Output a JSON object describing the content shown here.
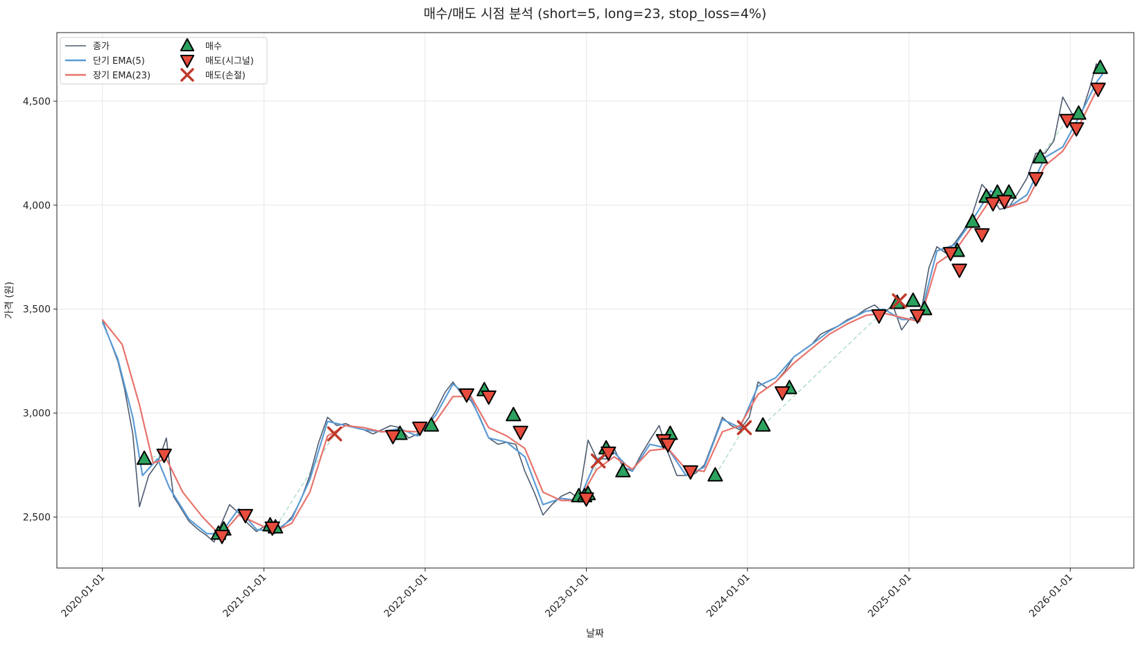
{
  "chart_data": {
    "type": "line",
    "title": "매수/매도 시점 분석 (short=5, long=23, stop_loss=4%)",
    "xlabel": "날짜",
    "ylabel": "가격 (원)",
    "xlim": [
      "2019-09-20",
      "2026-05-25"
    ],
    "ylim": [
      2255,
      4830
    ],
    "x_ticks": [
      "2020-01-01",
      "2021-01-01",
      "2022-01-01",
      "2023-01-01",
      "2024-01-01",
      "2025-01-01",
      "2026-01-01"
    ],
    "y_ticks": [
      2500,
      3000,
      3500,
      4000,
      4500
    ],
    "y_tick_labels": [
      "2,500",
      "3,000",
      "3,500",
      "4,000",
      "4,500"
    ],
    "grid": true,
    "legend_position": "top-left",
    "colors": {
      "close": "#4d5a6e",
      "ema_short": "#5b9bd5",
      "ema_long": "#e8726a",
      "buy": "#2ca25f",
      "sell_signal": "#e74c3c",
      "sell_stoploss": "#c0392b",
      "trade_link": "#a8dcc0"
    },
    "series": [
      {
        "name": "종가",
        "x": [
          "2020-01-01",
          "2020-01-20",
          "2020-02-05",
          "2020-02-20",
          "2020-03-10",
          "2020-03-25",
          "2020-04-15",
          "2020-05-05",
          "2020-05-25",
          "2020-06-10",
          "2020-06-25",
          "2020-07-15",
          "2020-08-05",
          "2020-08-25",
          "2020-09-10",
          "2020-09-25",
          "2020-10-15",
          "2020-11-05",
          "2020-11-25",
          "2020-12-15",
          "2021-01-05",
          "2021-01-25",
          "2021-02-15",
          "2021-03-05",
          "2021-03-25",
          "2021-04-15",
          "2021-05-05",
          "2021-05-25",
          "2021-06-15",
          "2021-07-05",
          "2021-07-25",
          "2021-08-15",
          "2021-09-05",
          "2021-09-25",
          "2021-10-15",
          "2021-11-05",
          "2021-11-25",
          "2021-12-15",
          "2022-01-05",
          "2022-01-25",
          "2022-02-15",
          "2022-03-05",
          "2022-03-25",
          "2022-04-15",
          "2022-05-05",
          "2022-05-25",
          "2022-06-15",
          "2022-07-05",
          "2022-07-25",
          "2022-08-15",
          "2022-09-05",
          "2022-09-25",
          "2022-10-15",
          "2022-11-05",
          "2022-11-25",
          "2022-12-15",
          "2023-01-05",
          "2023-01-25",
          "2023-02-15",
          "2023-03-05",
          "2023-03-25",
          "2023-04-15",
          "2023-05-05",
          "2023-05-25",
          "2023-06-15",
          "2023-07-05",
          "2023-07-25",
          "2023-08-15",
          "2023-09-05",
          "2023-09-25",
          "2023-10-15",
          "2023-11-05",
          "2023-11-25",
          "2023-12-15",
          "2024-01-05",
          "2024-01-25",
          "2024-02-15",
          "2024-03-05",
          "2024-03-25",
          "2024-04-15",
          "2024-05-05",
          "2024-05-25",
          "2024-06-15",
          "2024-07-05",
          "2024-07-25",
          "2024-08-15",
          "2024-09-05",
          "2024-09-25",
          "2024-10-15",
          "2024-11-05",
          "2024-11-25",
          "2024-12-15",
          "2025-01-05",
          "2025-01-25",
          "2025-02-15",
          "2025-03-05",
          "2025-03-25",
          "2025-04-15",
          "2025-05-05",
          "2025-05-25",
          "2025-06-15",
          "2025-07-05",
          "2025-07-25",
          "2025-08-15",
          "2025-09-05",
          "2025-09-25",
          "2025-10-15",
          "2025-11-05",
          "2025-11-25",
          "2025-12-15",
          "2026-01-05",
          "2026-01-25",
          "2026-02-15",
          "2026-03-01",
          "2026-03-15"
        ],
        "values": [
          3450,
          3340,
          3250,
          3120,
          2900,
          2550,
          2700,
          2760,
          2880,
          2600,
          2550,
          2480,
          2440,
          2410,
          2380,
          2460,
          2560,
          2520,
          2470,
          2430,
          2460,
          2420,
          2460,
          2500,
          2580,
          2700,
          2860,
          2980,
          2940,
          2950,
          2930,
          2920,
          2900,
          2920,
          2940,
          2930,
          2880,
          2900,
          2940,
          3010,
          3100,
          3150,
          3090,
          3060,
          2980,
          2880,
          2850,
          2860,
          2850,
          2720,
          2620,
          2510,
          2560,
          2600,
          2620,
          2590,
          2870,
          2780,
          2780,
          2830,
          2740,
          2720,
          2800,
          2870,
          2940,
          2810,
          2700,
          2700,
          2710,
          2750,
          2860,
          2980,
          2940,
          2920,
          2980,
          3150,
          3120,
          3150,
          3200,
          3270,
          3300,
          3330,
          3380,
          3400,
          3420,
          3450,
          3470,
          3500,
          3520,
          3480,
          3520,
          3400,
          3460,
          3450,
          3700,
          3800,
          3770,
          3820,
          3880,
          3960,
          4100,
          4050,
          3980,
          3990,
          4060,
          4130,
          4250,
          4250,
          4310,
          4520,
          4440,
          4430,
          4570,
          4680,
          4640
        ]
      },
      {
        "name": "단기 EMA(5)",
        "x": [
          "2020-01-01",
          "2020-02-05",
          "2020-03-10",
          "2020-04-01",
          "2020-05-05",
          "2020-06-01",
          "2020-07-15",
          "2020-08-25",
          "2020-09-25",
          "2020-11-05",
          "2020-12-15",
          "2021-01-25",
          "2021-03-05",
          "2021-04-15",
          "2021-05-25",
          "2021-07-05",
          "2021-08-15",
          "2021-09-25",
          "2021-11-05",
          "2021-12-15",
          "2022-01-25",
          "2022-03-05",
          "2022-04-15",
          "2022-05-25",
          "2022-07-05",
          "2022-08-15",
          "2022-09-25",
          "2022-11-05",
          "2022-12-15",
          "2023-01-25",
          "2023-03-05",
          "2023-04-15",
          "2023-05-25",
          "2023-07-05",
          "2023-08-15",
          "2023-09-25",
          "2023-11-05",
          "2023-12-15",
          "2024-01-25",
          "2024-03-05",
          "2024-04-15",
          "2024-05-25",
          "2024-07-05",
          "2024-08-15",
          "2024-09-25",
          "2024-11-05",
          "2024-12-15",
          "2025-01-25",
          "2025-03-05",
          "2025-04-15",
          "2025-05-25",
          "2025-07-05",
          "2025-08-15",
          "2025-09-25",
          "2025-11-05",
          "2025-12-15",
          "2026-01-25",
          "2026-03-01",
          "2026-03-15"
        ],
        "values": [
          3440,
          3260,
          2980,
          2700,
          2780,
          2640,
          2490,
          2420,
          2420,
          2540,
          2440,
          2430,
          2490,
          2680,
          2960,
          2940,
          2920,
          2910,
          2925,
          2890,
          2990,
          3140,
          3070,
          2880,
          2860,
          2790,
          2560,
          2590,
          2580,
          2780,
          2810,
          2720,
          2850,
          2830,
          2700,
          2740,
          2970,
          2930,
          3130,
          3170,
          3270,
          3330,
          3395,
          3445,
          3490,
          3500,
          3450,
          3450,
          3780,
          3810,
          3930,
          4070,
          3990,
          4050,
          4230,
          4280,
          4440,
          4590,
          4630
        ]
      },
      {
        "name": "장기 EMA(23)",
        "x": [
          "2020-01-01",
          "2020-02-15",
          "2020-03-25",
          "2020-04-25",
          "2020-05-25",
          "2020-07-01",
          "2020-08-15",
          "2020-09-25",
          "2020-11-05",
          "2020-12-15",
          "2021-01-25",
          "2021-03-05",
          "2021-04-15",
          "2021-05-25",
          "2021-07-05",
          "2021-08-15",
          "2021-09-25",
          "2021-11-05",
          "2021-12-15",
          "2022-01-25",
          "2022-03-05",
          "2022-04-15",
          "2022-05-25",
          "2022-07-05",
          "2022-08-15",
          "2022-09-25",
          "2022-11-05",
          "2022-12-15",
          "2023-01-25",
          "2023-03-05",
          "2023-04-15",
          "2023-05-25",
          "2023-07-05",
          "2023-08-15",
          "2023-09-25",
          "2023-11-05",
          "2023-12-15",
          "2024-01-25",
          "2024-03-05",
          "2024-04-15",
          "2024-05-25",
          "2024-07-05",
          "2024-08-15",
          "2024-09-25",
          "2024-11-05",
          "2024-12-15",
          "2025-01-25",
          "2025-03-05",
          "2025-04-15",
          "2025-05-25",
          "2025-07-05",
          "2025-08-15",
          "2025-09-25",
          "2025-11-05",
          "2025-12-15",
          "2026-01-25",
          "2026-03-01",
          "2026-03-15"
        ],
        "values": [
          3450,
          3330,
          3040,
          2760,
          2780,
          2620,
          2500,
          2410,
          2510,
          2470,
          2430,
          2470,
          2620,
          2890,
          2940,
          2930,
          2910,
          2915,
          2910,
          2960,
          3080,
          3080,
          2930,
          2890,
          2830,
          2620,
          2580,
          2580,
          2730,
          2790,
          2730,
          2820,
          2830,
          2730,
          2720,
          2910,
          2940,
          3090,
          3150,
          3240,
          3310,
          3380,
          3430,
          3470,
          3480,
          3460,
          3440,
          3720,
          3780,
          3900,
          4030,
          3990,
          4020,
          4190,
          4260,
          4400,
          4550,
          4590
        ]
      }
    ],
    "markers": [
      {
        "name": "매수",
        "shape": "triangle-up",
        "x": [
          "2020-04-05",
          "2020-09-20",
          "2020-10-02",
          "2021-01-15",
          "2021-01-27",
          "2021-11-05",
          "2022-01-15",
          "2022-05-15",
          "2022-07-20",
          "2022-12-15",
          "2022-12-28",
          "2023-01-05",
          "2023-02-15",
          "2023-03-25",
          "2023-07-10",
          "2023-10-20",
          "2024-02-05",
          "2024-04-05",
          "2024-12-05",
          "2025-01-10",
          "2025-02-05",
          "2025-04-20",
          "2025-05-25",
          "2025-06-25",
          "2025-07-20",
          "2025-08-15",
          "2025-10-25",
          "2026-01-20",
          "2026-03-10"
        ],
        "values": [
          2780,
          2420,
          2440,
          2460,
          2450,
          2900,
          2940,
          3110,
          2990,
          2600,
          2600,
          2610,
          2830,
          2720,
          2900,
          2700,
          2940,
          3120,
          3530,
          3540,
          3500,
          3780,
          3920,
          4040,
          4060,
          4060,
          4230,
          4440,
          4660
        ]
      },
      {
        "name": "매도(시그널)",
        "shape": "triangle-down",
        "x": [
          "2020-05-20",
          "2020-09-28",
          "2020-11-20",
          "2021-01-20",
          "2021-10-20",
          "2021-12-20",
          "2022-04-05",
          "2022-05-25",
          "2022-08-05",
          "2023-01-01",
          "2023-02-20",
          "2023-06-25",
          "2023-07-05",
          "2023-08-25",
          "2024-03-20",
          "2024-10-25",
          "2025-01-20",
          "2025-04-05",
          "2025-04-25",
          "2025-06-15",
          "2025-07-10",
          "2025-08-05",
          "2025-10-15",
          "2025-12-25",
          "2026-01-15",
          "2026-03-05"
        ],
        "values": [
          2800,
          2410,
          2510,
          2450,
          2890,
          2930,
          3090,
          3080,
          2910,
          2590,
          2810,
          2870,
          2850,
          2720,
          3100,
          3470,
          3470,
          3770,
          3690,
          3860,
          4010,
          4020,
          4130,
          4410,
          4370,
          4560
        ]
      },
      {
        "name": "매도(손절)",
        "shape": "x",
        "x": [
          "2021-06-10",
          "2023-01-28",
          "2023-12-25",
          "2024-12-10"
        ],
        "values": [
          2900,
          2770,
          2930,
          3540
        ]
      }
    ],
    "trade_links": [
      {
        "x": [
          "2020-04-05",
          "2020-05-20"
        ],
        "values": [
          2780,
          2800
        ]
      },
      {
        "x": [
          "2021-01-27",
          "2021-06-10"
        ],
        "values": [
          2450,
          2900
        ]
      },
      {
        "x": [
          "2022-12-28",
          "2023-01-28"
        ],
        "values": [
          2600,
          2770
        ]
      },
      {
        "x": [
          "2023-10-20",
          "2023-12-25"
        ],
        "values": [
          2700,
          2930
        ]
      },
      {
        "x": [
          "2024-02-05",
          "2024-10-25"
        ],
        "values": [
          2940,
          3470
        ]
      },
      {
        "x": [
          "2025-10-25",
          "2025-12-25"
        ],
        "values": [
          4230,
          4410
        ]
      }
    ]
  }
}
